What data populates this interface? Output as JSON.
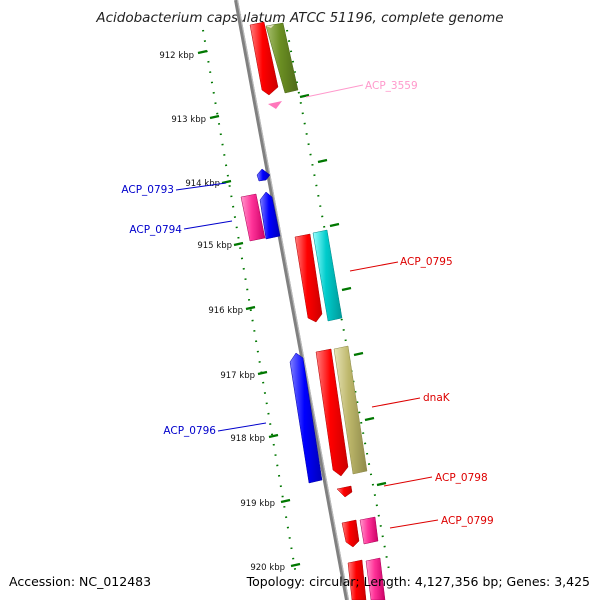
{
  "title": "Acidobacterium capsulatum ATCC 51196, complete genome",
  "footer": {
    "accession": "Accession: NC_012483",
    "summary": "Topology: circular; Length: 4,127,356 bp; Genes: 3,425"
  },
  "ticks": [
    "912 kbp",
    "913 kbp",
    "914 kbp",
    "915 kbp",
    "916 kbp",
    "917 kbp",
    "918 kbp",
    "919 kbp",
    "920 kbp"
  ],
  "gene_labels": [
    {
      "text": "ACP_3559",
      "color": "#ff99cc"
    },
    {
      "text": "ACP_0793",
      "color": "#0000cc"
    },
    {
      "text": "ACP_0794",
      "color": "#0000cc"
    },
    {
      "text": "ACP_0795",
      "color": "#dd0000"
    },
    {
      "text": "dnaK",
      "color": "#dd0000"
    },
    {
      "text": "ACP_0796",
      "color": "#0000cc"
    },
    {
      "text": "ACP_0798",
      "color": "#dd0000"
    },
    {
      "text": "ACP_0799",
      "color": "#dd0000"
    }
  ],
  "colors": {
    "backbone": "#808080",
    "tick_marks": "#007700",
    "cds_red": "#ff0000",
    "cds_blue": "#0000ff",
    "cds_pink": "#ff3399",
    "cds_cyan": "#00cccc",
    "cds_olive": "#6b8e23",
    "cds_khaki": "#bdb76b"
  }
}
